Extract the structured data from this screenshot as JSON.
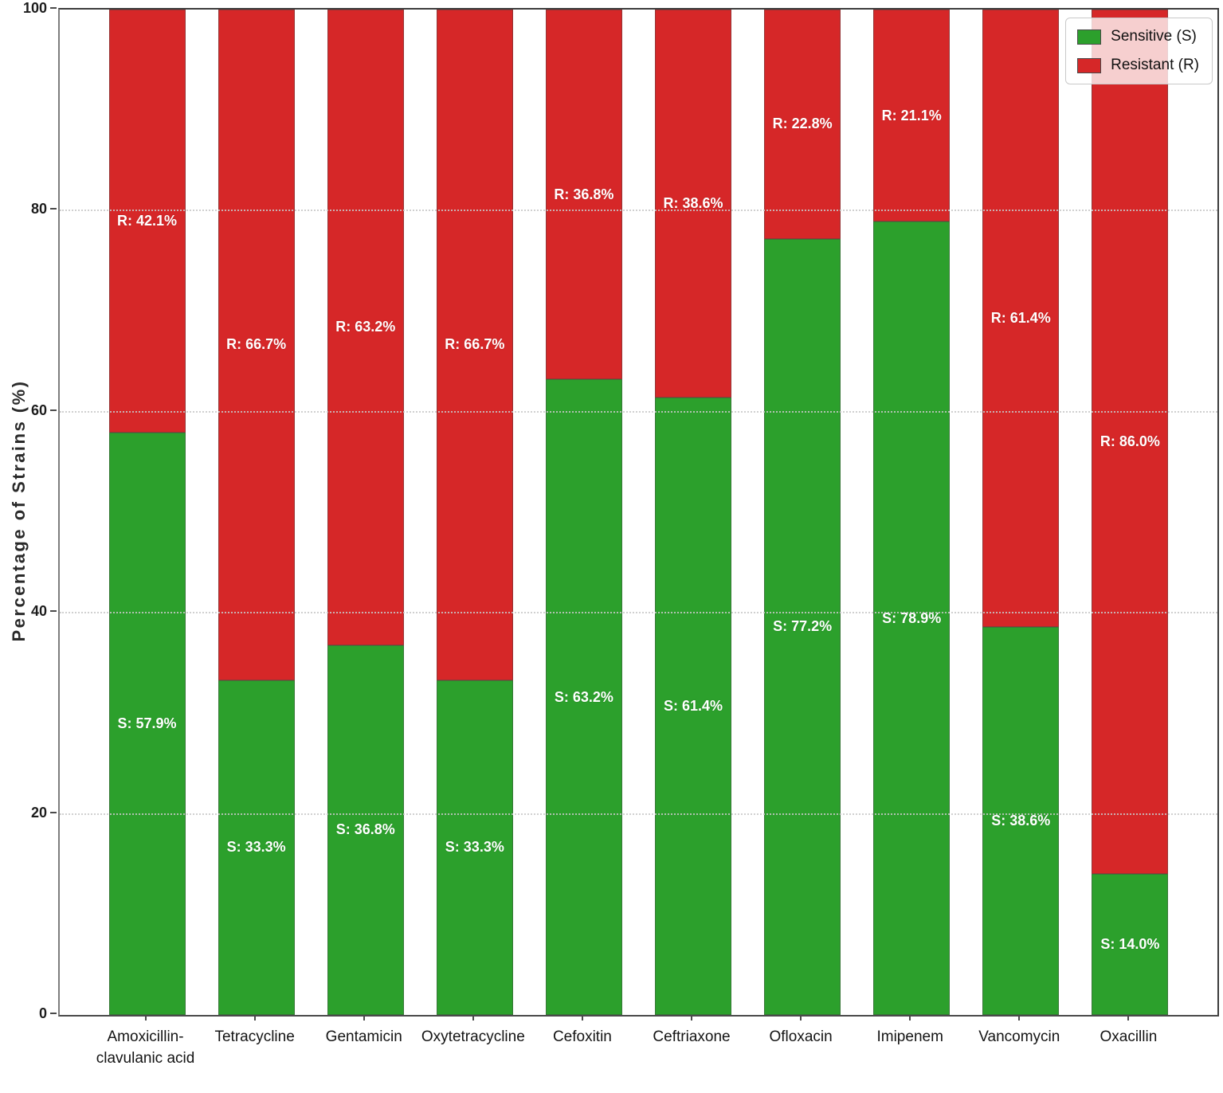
{
  "chart_data": {
    "type": "bar",
    "stacked": true,
    "orientation": "vertical",
    "title": "",
    "xlabel": "",
    "ylabel": "Percentage of Strains (%)",
    "ylim": [
      0,
      100
    ],
    "yticks": [
      0,
      20,
      40,
      60,
      80,
      100
    ],
    "grid": "horizontal-dotted",
    "legend_position": "top-right",
    "categories": [
      "Amoxicillin-\nclavulanic acid",
      "Tetracycline",
      "Gentamicin",
      "Oxytetracycline",
      "Cefoxitin",
      "Ceftriaxone",
      "Ofloxacin",
      "Imipenem",
      "Vancomycin",
      "Oxacillin"
    ],
    "series": [
      {
        "name": "Sensitive (S)",
        "label_prefix": "S",
        "color": "#2ca02c",
        "values": [
          57.9,
          33.3,
          36.8,
          33.3,
          63.2,
          61.4,
          77.2,
          78.9,
          38.6,
          14.0
        ],
        "labels": [
          "S: 57.9%",
          "S: 33.3%",
          "S: 36.8%",
          "S: 33.3%",
          "S: 63.2%",
          "S: 61.4%",
          "S: 77.2%",
          "S: 78.9%",
          "S: 38.6%",
          "S: 14.0%"
        ]
      },
      {
        "name": "Resistant (R)",
        "label_prefix": "R",
        "color": "#d62728",
        "values": [
          42.1,
          66.7,
          63.2,
          66.7,
          36.8,
          38.6,
          22.8,
          21.1,
          61.4,
          86.0
        ],
        "labels": [
          "R: 42.1%",
          "R: 66.7%",
          "R: 63.2%",
          "R: 66.7%",
          "R: 36.8%",
          "R: 38.6%",
          "R: 22.8%",
          "R: 21.1%",
          "R: 61.4%",
          "R: 86.0%"
        ]
      }
    ]
  }
}
